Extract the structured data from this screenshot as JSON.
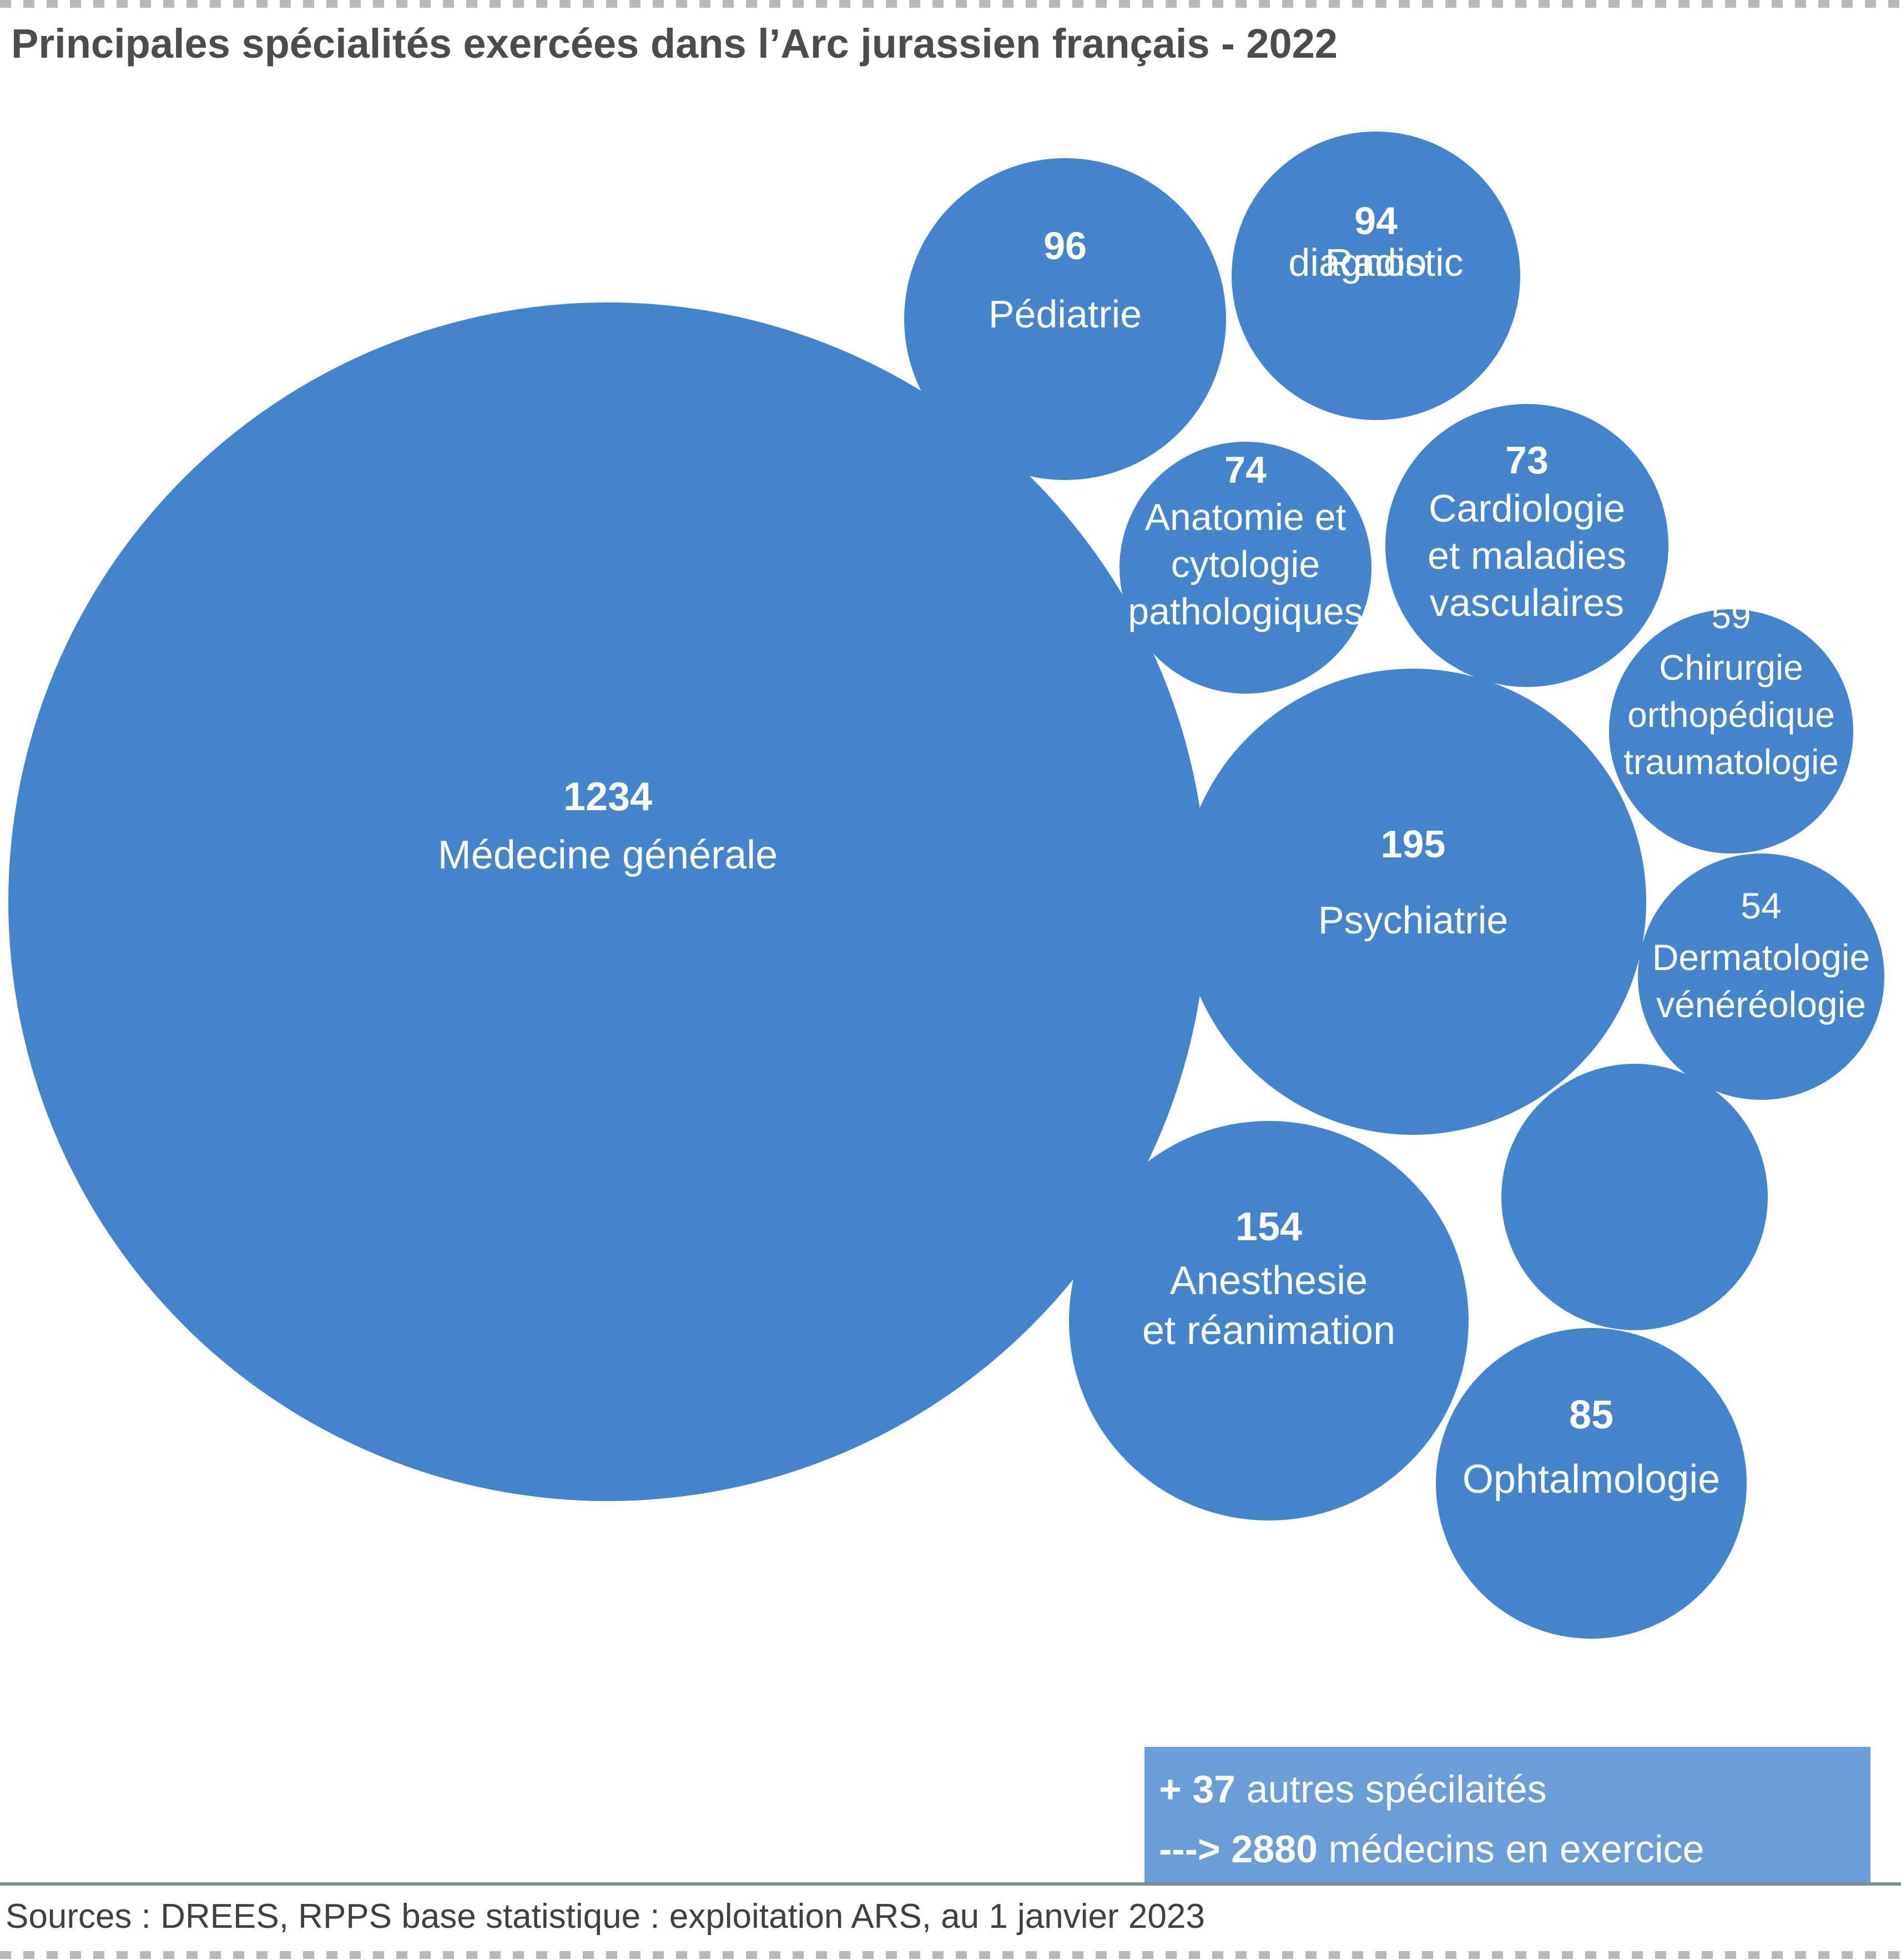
{
  "title": "Principales spécialités exercées dans l’Arc jurassien français - 2022",
  "colors": {
    "bubble": "#4484cc",
    "summary_box": "#6b9ed8",
    "title": "#4c4c4c",
    "label": "#ffffff"
  },
  "chart_data": {
    "type": "bubble",
    "title": "Principales spécialités exercées dans l’Arc jurassien français - 2022",
    "bubbles": [
      {
        "name": "Médecine générale",
        "value": 1234,
        "label_lines": [
          "Médecine générale"
        ]
      },
      {
        "name": "Pédiatrie",
        "value": 96,
        "label_lines": [
          "Pédiatrie"
        ]
      },
      {
        "name": "Radio diagnostic",
        "value": 94,
        "label_lines": [
          "Radio",
          "diagnostic"
        ]
      },
      {
        "name": "Anatomie et cytologie pathologiques",
        "value": 74,
        "label_lines": [
          "Anatomie et",
          "cytologie",
          "pathologiques"
        ]
      },
      {
        "name": "Cardiologie et maladies vasculaires",
        "value": 73,
        "label_lines": [
          "Cardiologie",
          "et maladies",
          "vasculaires"
        ]
      },
      {
        "name": "Chirurgie orthopédique traumatologie",
        "value": 59,
        "label_lines": [
          "Chirurgie",
          "orthopédique",
          "traumatologie"
        ]
      },
      {
        "name": "Psychiatrie",
        "value": 195,
        "label_lines": [
          "Psychiatrie"
        ]
      },
      {
        "name": "Dermatologie vénéréologie",
        "value": 54,
        "label_lines": [
          "Dermatologie",
          "vénéréologie"
        ]
      },
      {
        "name": "",
        "value": null,
        "label_lines": []
      },
      {
        "name": "Anesthesie et réanimation",
        "value": 154,
        "label_lines": [
          "Anesthesie",
          "et réanimation"
        ]
      },
      {
        "name": "Ophtalmologie",
        "value": 85,
        "label_lines": [
          "Ophtalmologie"
        ]
      }
    ]
  },
  "summary": {
    "line1_prefix": "+ ",
    "line1_value": "37",
    "line1_suffix": " autres spécilaités",
    "line2_prefix": "---> ",
    "line2_value": "2880",
    "line2_suffix": " médecins en exercice"
  },
  "source": "Sources : DREES, RPPS base statistique : exploitation ARS, au 1 janvier 2023"
}
